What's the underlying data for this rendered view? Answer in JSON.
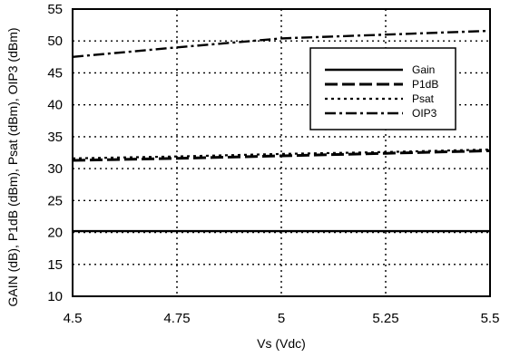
{
  "chart_data": {
    "type": "line",
    "title": "",
    "xlabel": "Vs (Vdc)",
    "ylabel": "GAIN (dB), P1dB (dBm), Psat (dBm), OIP3 (dBm)",
    "xlim": [
      4.5,
      5.5
    ],
    "ylim": [
      10,
      55
    ],
    "x_ticks": [
      4.5,
      4.75,
      5,
      5.25,
      5.5
    ],
    "x_tick_labels": [
      "4.5",
      "4.75",
      "5",
      "5.25",
      "5.5"
    ],
    "y_ticks": [
      10,
      15,
      20,
      25,
      30,
      35,
      40,
      45,
      50,
      55
    ],
    "y_tick_labels": [
      "10",
      "15",
      "20",
      "25",
      "30",
      "35",
      "40",
      "45",
      "50",
      "55"
    ],
    "grid": true,
    "legend_position": "right",
    "series": [
      {
        "name": "Gain",
        "style": "solid",
        "x": [
          4.5,
          4.75,
          5,
          5.25,
          5.5
        ],
        "y": [
          20.2,
          20.2,
          20.2,
          20.2,
          20.2
        ]
      },
      {
        "name": "P1dB",
        "style": "long-dash",
        "x": [
          4.5,
          4.75,
          5,
          5.25,
          5.5
        ],
        "y": [
          31.3,
          31.6,
          32.0,
          32.4,
          32.8
        ]
      },
      {
        "name": "Psat",
        "style": "dotted",
        "x": [
          4.5,
          4.75,
          5,
          5.25,
          5.5
        ],
        "y": [
          31.6,
          31.9,
          32.3,
          32.6,
          33.0
        ]
      },
      {
        "name": "OIP3",
        "style": "dash-dot",
        "x": [
          4.5,
          4.75,
          5,
          5.25,
          5.5
        ],
        "y": [
          47.5,
          49.0,
          50.4,
          51.0,
          51.6
        ]
      }
    ]
  }
}
